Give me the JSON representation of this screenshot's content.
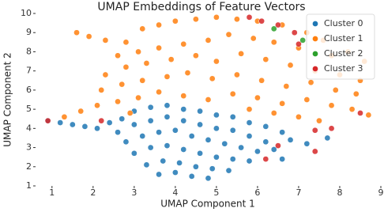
{
  "chart_data": {
    "type": "scatter",
    "title": "UMAP Embeddings of Feature Vectors",
    "x_label": "UMAP Component 1",
    "y_label": "UMAP Component 2",
    "xlim": [
      0.6,
      9.0
    ],
    "ylim": [
      1,
      10
    ],
    "xticks": [
      1,
      2,
      3,
      4,
      5,
      6,
      7,
      8,
      9
    ],
    "yticks": [
      1,
      2,
      3,
      4,
      5,
      6,
      7,
      8,
      9,
      10
    ],
    "legend_position": "upper right",
    "series": [
      {
        "name": "Cluster 0",
        "color": "#1f77b4",
        "x": [
          0.9,
          1.2,
          1.5,
          1.8,
          2.1,
          2.4,
          2.7,
          3.0,
          3.4,
          3.8,
          4.2,
          4.6,
          5.0,
          5.4,
          5.8,
          6.2,
          6.6,
          6.8,
          2.6,
          3.0,
          3.4,
          3.8,
          4.2,
          4.6,
          5.0,
          5.4,
          5.8,
          6.2,
          2.8,
          3.2,
          3.6,
          4.0,
          4.4,
          4.8,
          5.2,
          5.6,
          6.0,
          6.4,
          3.0,
          3.4,
          3.8,
          4.2,
          4.6,
          5.0,
          5.4,
          5.8,
          3.3,
          3.7,
          4.1,
          4.5,
          4.9,
          5.3,
          3.6,
          4.0,
          4.4,
          4.8,
          6.6,
          7.2,
          7.7
        ],
        "values": [
          4.4,
          4.3,
          4.2,
          4.1,
          4.0,
          4.3,
          4.5,
          4.9,
          5.1,
          5.2,
          5.0,
          4.9,
          4.7,
          4.6,
          4.3,
          4.1,
          3.8,
          3.4,
          3.8,
          4.2,
          4.4,
          4.6,
          4.4,
          4.2,
          4.0,
          3.9,
          3.6,
          3.3,
          3.3,
          3.6,
          3.8,
          3.9,
          3.6,
          3.4,
          3.2,
          3.0,
          2.8,
          2.9,
          2.7,
          3.0,
          3.1,
          2.9,
          2.7,
          2.5,
          2.4,
          2.3,
          2.1,
          2.3,
          2.2,
          2.0,
          1.9,
          1.8,
          1.6,
          1.7,
          1.5,
          1.4,
          2.4,
          3.2,
          3.5
        ]
      },
      {
        "name": "Cluster 1",
        "color": "#ff7f0e",
        "x": [
          1.6,
          1.9,
          2.3,
          2.8,
          3.2,
          3.6,
          4.0,
          4.5,
          5.0,
          5.5,
          6.0,
          6.6,
          7.2,
          7.6,
          8.2,
          8.6,
          2.6,
          3.1,
          3.6,
          4.2,
          4.8,
          5.3,
          5.9,
          6.4,
          7.0,
          7.8,
          2.3,
          2.8,
          3.3,
          3.9,
          4.5,
          5.0,
          5.6,
          6.2,
          6.8,
          7.4,
          8.0,
          8.5,
          2.2,
          2.7,
          3.2,
          3.8,
          4.3,
          4.9,
          5.5,
          6.1,
          6.7,
          7.3,
          7.9,
          8.4,
          1.3,
          1.7,
          2.1,
          2.6,
          3.1,
          3.6,
          4.2,
          4.8,
          5.4,
          6.0,
          6.6,
          7.2,
          7.8,
          8.3,
          8.7,
          6.4,
          7.0,
          7.5,
          5.8,
          2.9
        ],
        "values": [
          9.0,
          8.8,
          8.6,
          8.5,
          9.2,
          9.4,
          9.6,
          9.7,
          9.8,
          9.7,
          9.6,
          9.4,
          9.0,
          8.6,
          8.0,
          7.5,
          7.8,
          8.0,
          8.2,
          8.4,
          8.6,
          8.9,
          8.7,
          8.5,
          8.2,
          7.8,
          6.8,
          7.2,
          7.4,
          7.6,
          7.8,
          7.5,
          7.9,
          7.6,
          7.3,
          7.0,
          6.8,
          6.5,
          6.0,
          6.3,
          6.5,
          6.7,
          6.9,
          6.6,
          6.8,
          6.5,
          6.2,
          6.4,
          6.0,
          5.8,
          4.6,
          4.9,
          5.2,
          5.4,
          5.6,
          5.9,
          5.7,
          5.5,
          5.8,
          5.6,
          5.3,
          5.5,
          5.2,
          5.0,
          4.7,
          4.8,
          4.6,
          4.4,
          5.0,
          4.8
        ]
      },
      {
        "name": "Cluster 2",
        "color": "#2ca02c",
        "x": [
          6.4,
          7.1
        ],
        "values": [
          9.2,
          8.6
        ]
      },
      {
        "name": "Cluster 3",
        "color": "#d62728",
        "x": [
          0.9,
          5.8,
          6.1,
          6.5,
          6.9,
          7.0,
          8.5,
          7.8,
          7.4,
          6.5,
          6.2,
          7.4,
          2.2
        ],
        "values": [
          4.4,
          9.8,
          9.6,
          9.4,
          9.0,
          8.4,
          4.8,
          4.0,
          3.9,
          3.1,
          2.4,
          2.8,
          4.4
        ]
      }
    ]
  }
}
